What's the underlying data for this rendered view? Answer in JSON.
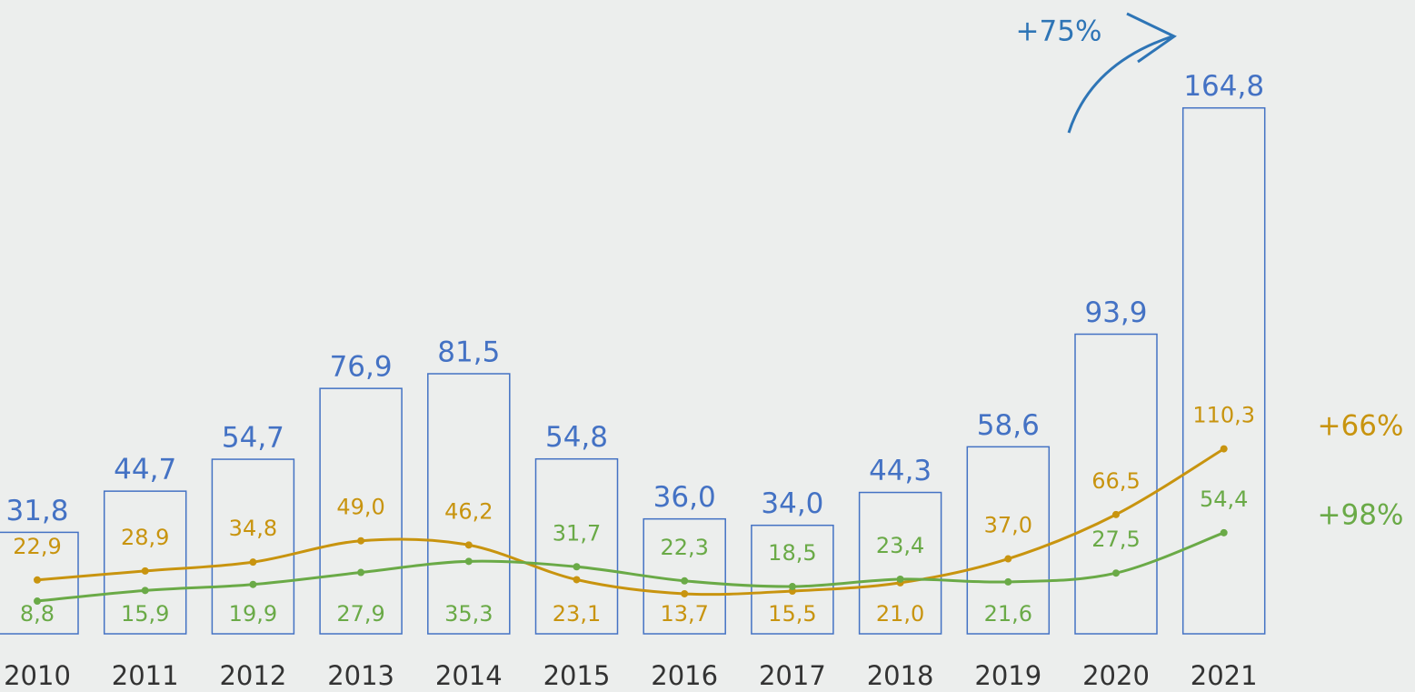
{
  "chart_data": {
    "type": "bar",
    "categories": [
      "2010",
      "2011",
      "2012",
      "2013",
      "2014",
      "2015",
      "2016",
      "2017",
      "2018",
      "2019",
      "2020",
      "2021"
    ],
    "ylim": [
      0,
      165
    ],
    "y2lim": [
      -13,
      338
    ],
    "series": [
      {
        "color": "#4472c4",
        "values": [
          31.8,
          44.7,
          54.7,
          76.9,
          81.5,
          54.8,
          36.0,
          34.0,
          44.3,
          58.6,
          93.9,
          164.8
        ],
        "value_labels": [
          "31,8",
          "44,7",
          "54,7",
          "76,9",
          "81,5",
          "54,8",
          "36,0",
          "34,0",
          "44,3",
          "58,6",
          "93,9",
          "164,8"
        ]
      },
      {
        "type": "line",
        "axis": "y2",
        "color": "#c8940f",
        "values": [
          22.9,
          28.9,
          34.8,
          49.0,
          46.2,
          23.1,
          13.7,
          15.5,
          21.0,
          37.0,
          66.5,
          110.3
        ],
        "value_labels": [
          "22,9",
          "28,9",
          "34,8",
          "49,0",
          "46,2",
          "23,1",
          "13,7",
          "15,5",
          "21,0",
          "37,0",
          "66,5",
          "110,3"
        ]
      },
      {
        "type": "line",
        "axis": "y2",
        "color": "#6aaa47",
        "values": [
          8.8,
          15.9,
          19.9,
          27.9,
          35.3,
          31.7,
          22.3,
          18.5,
          23.4,
          21.6,
          27.5,
          54.4
        ],
        "value_labels": [
          "8,8",
          "15,9",
          "19,9",
          "27,9",
          "35,3",
          "31,7",
          "22,3",
          "18,5",
          "23,4",
          "21,6",
          "27,5",
          "54,4"
        ]
      }
    ],
    "annotations": [
      {
        "text": "+75%",
        "color": "#2e75b6"
      },
      {
        "text": "+66%",
        "color": "#c8940f"
      },
      {
        "text": "+98%",
        "color": "#6aaa47"
      }
    ]
  }
}
